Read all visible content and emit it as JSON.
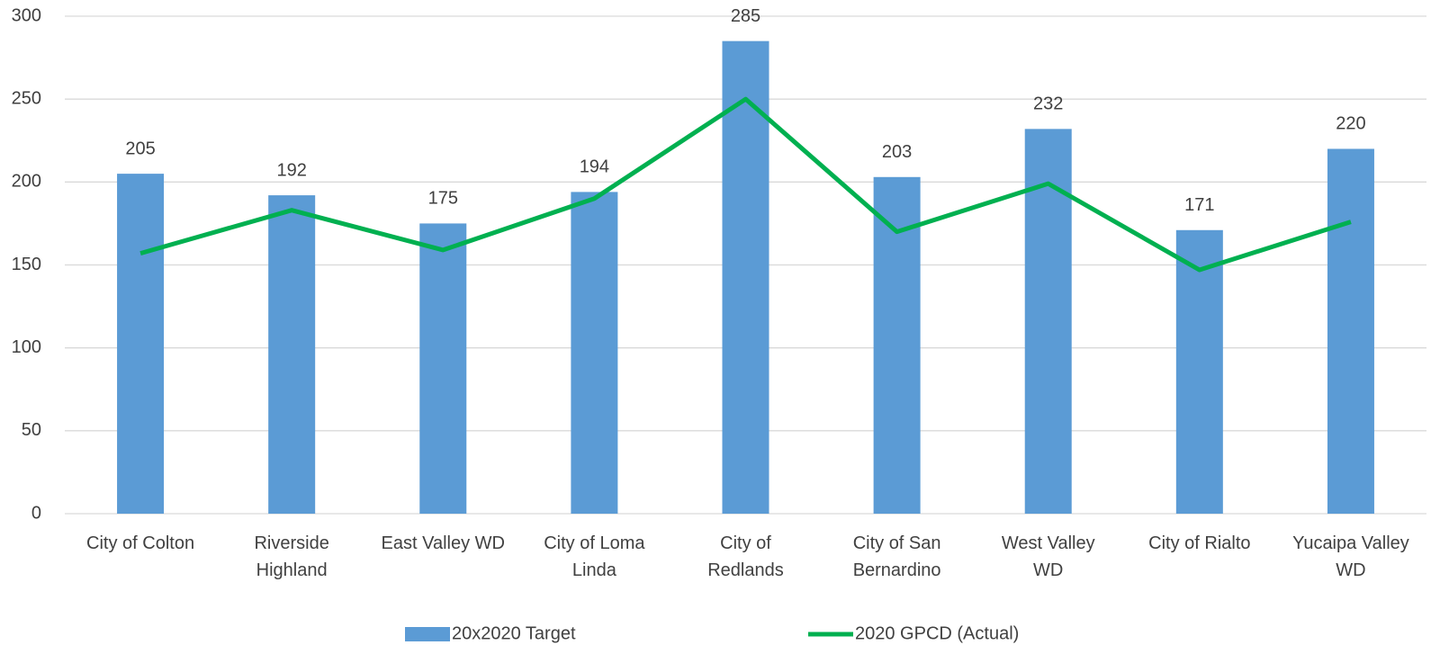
{
  "chart_data": {
    "type": "bar",
    "categories": [
      "City of Colton",
      "Riverside\nHighland",
      "East Valley WD",
      "City of Loma\nLinda",
      "City of\nRedlands",
      "City of San\nBernardino",
      "West Valley\nWD",
      "City of Rialto",
      "Yucaipa Valley\nWD"
    ],
    "series": [
      {
        "name": "20x2020 Target",
        "type": "bar",
        "color": "#5b9bd5",
        "values": [
          205,
          192,
          175,
          194,
          285,
          203,
          232,
          171,
          220
        ]
      },
      {
        "name": "2020 GPCD (Actual)",
        "type": "line",
        "color": "#00b050",
        "values": [
          157,
          183,
          159,
          190,
          250,
          170,
          199,
          147,
          176
        ]
      }
    ],
    "ylim": [
      0,
      300
    ],
    "yticks": [
      0,
      50,
      100,
      150,
      200,
      250,
      300
    ],
    "grid": true,
    "legend": "bottom"
  }
}
